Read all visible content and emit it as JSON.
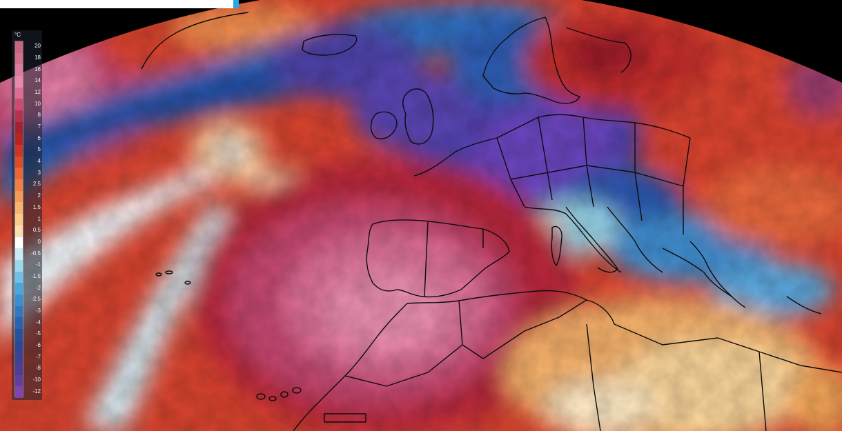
{
  "legend": {
    "unit": "°C",
    "stops": [
      {
        "label": "20",
        "color": "#c7677f"
      },
      {
        "label": "18",
        "color": "#d0708b"
      },
      {
        "label": "16",
        "color": "#db7c9a"
      },
      {
        "label": "14",
        "color": "#e68aab"
      },
      {
        "label": "12",
        "color": "#dd6d93"
      },
      {
        "label": "10",
        "color": "#cd4a73"
      },
      {
        "label": "8",
        "color": "#b8304f"
      },
      {
        "label": "7",
        "color": "#a3222f"
      },
      {
        "label": "6",
        "color": "#b7241f"
      },
      {
        "label": "5",
        "color": "#cc3425"
      },
      {
        "label": "4",
        "color": "#dd4a2c"
      },
      {
        "label": "3",
        "color": "#e86538"
      },
      {
        "label": "2.5",
        "color": "#ef7f45"
      },
      {
        "label": "2",
        "color": "#f39a57"
      },
      {
        "label": "1.5",
        "color": "#f6b46e"
      },
      {
        "label": "1",
        "color": "#f8cb8a"
      },
      {
        "label": "0.5",
        "color": "#f9dfb0"
      },
      {
        "label": "0",
        "color": "#ffffff"
      },
      {
        "label": "-0.5",
        "color": "#c9ecf4"
      },
      {
        "label": "-1",
        "color": "#9ad8ea"
      },
      {
        "label": "-1.5",
        "color": "#6ec1e3"
      },
      {
        "label": "-2",
        "color": "#4aa6db"
      },
      {
        "label": "-2.5",
        "color": "#3b8ed0"
      },
      {
        "label": "-3",
        "color": "#3277c2"
      },
      {
        "label": "-4",
        "color": "#2a62b2"
      },
      {
        "label": "-5",
        "color": "#2552a3"
      },
      {
        "label": "-6",
        "color": "#2a4898"
      },
      {
        "label": "-7",
        "color": "#3a4294"
      },
      {
        "label": "-8",
        "color": "#4a3f97"
      },
      {
        "label": "-10",
        "color": "#603f9f"
      },
      {
        "label": "-12",
        "color": "#7c46b0"
      }
    ]
  },
  "palette": {
    "background": "#000000",
    "coastline": "#0a0a0a",
    "ocean_cold": "#2f62b8",
    "core_cold": "#5d3fb5",
    "heat_core": "#e06e9a",
    "heat_outer": "#c23a3a"
  }
}
